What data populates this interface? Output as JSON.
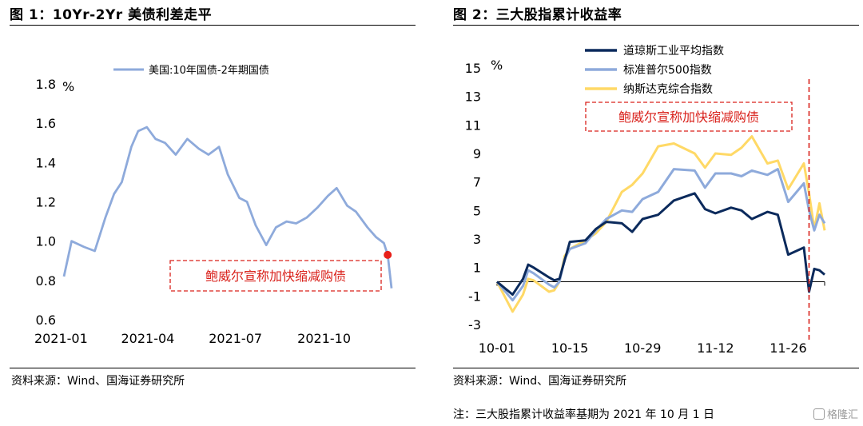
{
  "fig1": {
    "title": "图 1：10Yr-2Yr 美债利差走平",
    "source": "资料来源：Wind、国海证券研究所"
  },
  "fig2": {
    "title": "图 2：三大股指累计收益率",
    "source": "资料来源：Wind、国海证券研究所",
    "note": "注：三大股指累计收益率基期为 2021 年 10 月 1 日"
  },
  "watermark": "格隆汇",
  "chart_data": [
    {
      "type": "line",
      "unit": "%",
      "ylim": [
        0.6,
        1.8
      ],
      "yticks": [
        "1.8",
        "1.6",
        "1.4",
        "1.2",
        "1.0",
        "0.8",
        "0.6"
      ],
      "xticks": [
        "2021-01",
        "2021-04",
        "2021-07",
        "2021-10"
      ],
      "xlim": [
        "2021-01-04",
        "2021-12-10"
      ],
      "legend_position": "top-left",
      "series": [
        {
          "name": "美国:10年国债-2年期国债",
          "color": "#8eaadb",
          "x": [
            "2021-01-04",
            "2021-01-12",
            "2021-01-25",
            "2021-02-05",
            "2021-02-16",
            "2021-02-25",
            "2021-03-05",
            "2021-03-15",
            "2021-03-22",
            "2021-03-31",
            "2021-04-09",
            "2021-04-19",
            "2021-04-30",
            "2021-05-12",
            "2021-05-24",
            "2021-06-03",
            "2021-06-14",
            "2021-06-23",
            "2021-07-05",
            "2021-07-13",
            "2021-07-22",
            "2021-08-02",
            "2021-08-12",
            "2021-08-23",
            "2021-09-02",
            "2021-09-13",
            "2021-09-24",
            "2021-10-05",
            "2021-10-14",
            "2021-10-25",
            "2021-11-03",
            "2021-11-15",
            "2021-11-24",
            "2021-12-02",
            "2021-12-06",
            "2021-12-10"
          ],
          "values": [
            0.82,
            1.0,
            0.97,
            0.95,
            1.12,
            1.24,
            1.3,
            1.48,
            1.56,
            1.58,
            1.52,
            1.5,
            1.44,
            1.52,
            1.47,
            1.44,
            1.48,
            1.34,
            1.22,
            1.2,
            1.08,
            0.98,
            1.07,
            1.1,
            1.09,
            1.12,
            1.17,
            1.23,
            1.27,
            1.18,
            1.15,
            1.07,
            1.02,
            0.99,
            0.93,
            0.76
          ]
        }
      ],
      "marker": {
        "x": "2021-12-06",
        "value": 0.93,
        "color": "#e8201a"
      },
      "annotation": "鲍威尔宣称加快缩减购债"
    },
    {
      "type": "line",
      "unit": "%",
      "ylim": [
        -3,
        15
      ],
      "yticks": [
        "15",
        "13",
        "11",
        "9",
        "7",
        "5",
        "3",
        "1",
        "-1",
        "-3"
      ],
      "xticks": [
        "10-01",
        "10-15",
        "10-29",
        "11-12",
        "11-26"
      ],
      "xlim": [
        "2021-10-01",
        "2021-12-03"
      ],
      "vline": {
        "x": "2021-11-30",
        "color": "#d9211b"
      },
      "annotation": "鲍威尔宣称加快缩减购债",
      "legend_position": "top-left",
      "series": [
        {
          "name": "道琼斯工业平均指数",
          "color": "#0b2a5c",
          "x": [
            "2021-10-01",
            "2021-10-04",
            "2021-10-06",
            "2021-10-07",
            "2021-10-08",
            "2021-10-11",
            "2021-10-12",
            "2021-10-13",
            "2021-10-14",
            "2021-10-15",
            "2021-10-18",
            "2021-10-20",
            "2021-10-22",
            "2021-10-25",
            "2021-10-27",
            "2021-10-29",
            "2021-11-01",
            "2021-11-04",
            "2021-11-08",
            "2021-11-10",
            "2021-11-12",
            "2021-11-15",
            "2021-11-17",
            "2021-11-19",
            "2021-11-22",
            "2021-11-24",
            "2021-11-26",
            "2021-11-29",
            "2021-11-30",
            "2021-12-01",
            "2021-12-02",
            "2021-12-03"
          ],
          "values": [
            0,
            -0.9,
            0.2,
            1.2,
            1.0,
            0.3,
            0.1,
            0.2,
            1.5,
            2.8,
            2.9,
            3.7,
            4.2,
            4.1,
            3.5,
            4.4,
            4.7,
            5.7,
            6.2,
            5.1,
            4.8,
            5.2,
            5.0,
            4.4,
            4.9,
            4.7,
            1.9,
            2.4,
            -0.7,
            0.9,
            0.8,
            0.5
          ]
        },
        {
          "name": "标准普尔500指数",
          "color": "#8eaadb",
          "x": [
            "2021-10-01",
            "2021-10-04",
            "2021-10-06",
            "2021-10-07",
            "2021-10-08",
            "2021-10-11",
            "2021-10-12",
            "2021-10-13",
            "2021-10-14",
            "2021-10-15",
            "2021-10-18",
            "2021-10-20",
            "2021-10-22",
            "2021-10-25",
            "2021-10-27",
            "2021-10-29",
            "2021-11-01",
            "2021-11-04",
            "2021-11-08",
            "2021-11-10",
            "2021-11-12",
            "2021-11-15",
            "2021-11-17",
            "2021-11-19",
            "2021-11-22",
            "2021-11-24",
            "2021-11-26",
            "2021-11-29",
            "2021-11-30",
            "2021-12-01",
            "2021-12-02",
            "2021-12-03"
          ],
          "values": [
            0,
            -1.3,
            -0.3,
            0.8,
            0.6,
            -0.2,
            -0.4,
            0.0,
            1.6,
            2.3,
            2.7,
            3.6,
            4.4,
            5.0,
            4.9,
            5.8,
            6.3,
            7.9,
            7.8,
            6.6,
            7.6,
            7.6,
            7.4,
            7.8,
            7.5,
            7.9,
            5.6,
            6.9,
            5.0,
            3.6,
            4.7,
            4.1
          ]
        },
        {
          "name": "纳斯达克综合指数",
          "color": "#ffd966",
          "x": [
            "2021-10-01",
            "2021-10-04",
            "2021-10-06",
            "2021-10-07",
            "2021-10-08",
            "2021-10-11",
            "2021-10-12",
            "2021-10-13",
            "2021-10-14",
            "2021-10-15",
            "2021-10-18",
            "2021-10-20",
            "2021-10-22",
            "2021-10-25",
            "2021-10-27",
            "2021-10-29",
            "2021-11-01",
            "2021-11-04",
            "2021-11-08",
            "2021-11-10",
            "2021-11-12",
            "2021-11-15",
            "2021-11-17",
            "2021-11-19",
            "2021-11-22",
            "2021-11-24",
            "2021-11-26",
            "2021-11-29",
            "2021-11-30",
            "2021-12-01",
            "2021-12-02",
            "2021-12-03"
          ],
          "values": [
            0,
            -2.1,
            -0.9,
            0.2,
            0.1,
            -0.7,
            -0.6,
            0.0,
            1.8,
            2.3,
            2.9,
            3.4,
            4.2,
            6.3,
            6.8,
            7.6,
            9.5,
            9.7,
            9.0,
            8.0,
            9.0,
            8.9,
            9.4,
            10.2,
            8.3,
            8.5,
            6.5,
            8.3,
            6.2,
            3.7,
            5.5,
            3.6
          ]
        }
      ]
    }
  ]
}
